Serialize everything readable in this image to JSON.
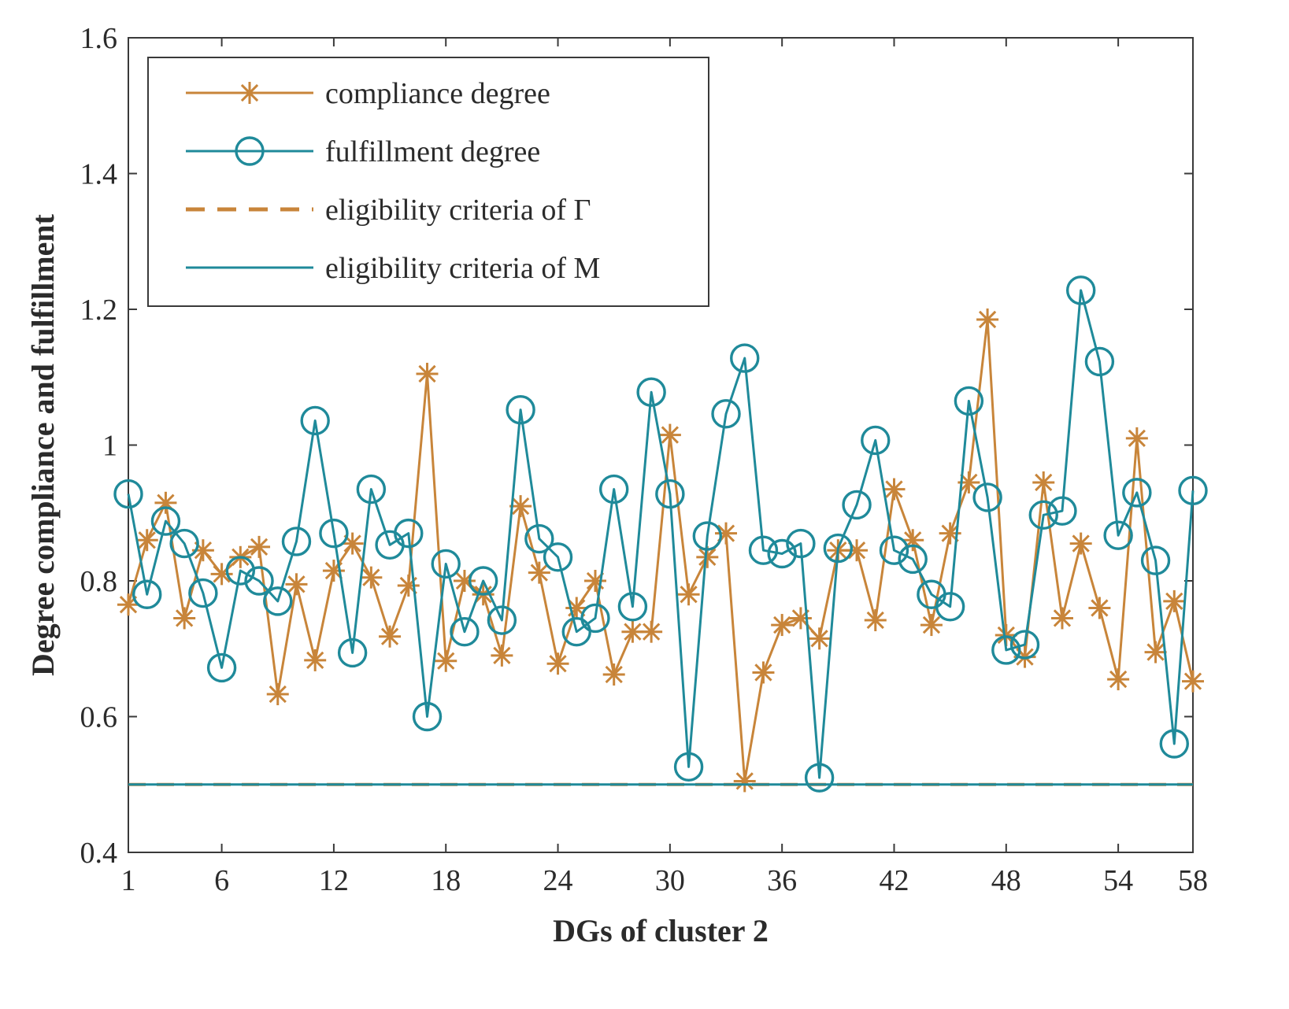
{
  "chart_data": {
    "type": "line",
    "title": "",
    "xlabel": "DGs of cluster 2",
    "ylabel": "Degree compliance and fulfillment",
    "xlim": [
      1,
      58
    ],
    "ylim": [
      0.4,
      1.6
    ],
    "x_ticks": [
      1,
      6,
      12,
      18,
      24,
      30,
      36,
      42,
      48,
      54,
      58
    ],
    "x_tick_labels": [
      "1",
      "6",
      "12",
      "18",
      "24",
      "30",
      "36",
      "42",
      "48",
      "54",
      "58"
    ],
    "y_ticks": [
      0.4,
      0.6,
      0.8,
      1.0,
      1.2,
      1.4,
      1.6
    ],
    "y_tick_labels": [
      "0.4",
      "0.6",
      "0.8",
      "1",
      "1.2",
      "1.4",
      "1.6"
    ],
    "grid": false,
    "legend_position": "top-left",
    "series": [
      {
        "name": "compliance degree",
        "color": "#c8853a",
        "marker": "asterisk",
        "line": "solid",
        "x": [
          1,
          2,
          3,
          4,
          5,
          6,
          7,
          8,
          9,
          10,
          11,
          12,
          13,
          14,
          15,
          16,
          17,
          18,
          19,
          20,
          21,
          22,
          23,
          24,
          25,
          26,
          27,
          28,
          29,
          30,
          31,
          32,
          33,
          34,
          35,
          36,
          37,
          38,
          39,
          40,
          41,
          42,
          43,
          44,
          45,
          46,
          47,
          48,
          49,
          50,
          51,
          52,
          53,
          54,
          55,
          56,
          57,
          58
        ],
        "values": [
          0.765,
          0.86,
          0.915,
          0.745,
          0.845,
          0.81,
          0.835,
          0.85,
          0.633,
          0.795,
          0.683,
          0.815,
          0.855,
          0.805,
          0.718,
          0.793,
          1.105,
          0.682,
          0.8,
          0.78,
          0.69,
          0.91,
          0.812,
          0.678,
          0.76,
          0.8,
          0.662,
          0.725,
          0.725,
          1.015,
          0.78,
          0.835,
          0.87,
          0.505,
          0.665,
          0.735,
          0.745,
          0.715,
          0.845,
          0.845,
          0.742,
          0.935,
          0.86,
          0.735,
          0.87,
          0.945,
          1.185,
          0.72,
          0.688,
          0.945,
          0.745,
          0.855,
          0.76,
          0.655,
          1.01,
          0.695,
          0.77,
          0.652
        ]
      },
      {
        "name": "fulfillment degree",
        "color": "#1f8a9a",
        "marker": "circle",
        "line": "solid",
        "x": [
          1,
          2,
          3,
          4,
          5,
          6,
          7,
          8,
          9,
          10,
          11,
          12,
          13,
          14,
          15,
          16,
          17,
          18,
          19,
          20,
          21,
          22,
          23,
          24,
          25,
          26,
          27,
          28,
          29,
          30,
          31,
          32,
          33,
          34,
          35,
          36,
          37,
          38,
          39,
          40,
          41,
          42,
          43,
          44,
          45,
          46,
          47,
          48,
          49,
          50,
          51,
          52,
          53,
          54,
          55,
          56,
          57,
          58
        ],
        "values": [
          0.928,
          0.78,
          0.888,
          0.855,
          0.782,
          0.672,
          0.815,
          0.8,
          0.77,
          0.858,
          1.036,
          0.87,
          0.694,
          0.935,
          0.853,
          0.87,
          0.6,
          0.825,
          0.725,
          0.8,
          0.742,
          1.052,
          0.862,
          0.835,
          0.725,
          0.745,
          0.935,
          0.762,
          1.078,
          0.928,
          0.526,
          0.866,
          1.046,
          1.128,
          0.845,
          0.84,
          0.855,
          0.51,
          0.848,
          0.912,
          1.007,
          0.845,
          0.832,
          0.78,
          0.762,
          1.065,
          0.923,
          0.698,
          0.706,
          0.897,
          0.903,
          1.228,
          1.123,
          0.867,
          0.93,
          0.83,
          0.56,
          0.933
        ]
      },
      {
        "name": "eligibility criteria of Γ",
        "color": "#c8853a",
        "line": "dashed",
        "x": [
          1,
          58
        ],
        "values": [
          0.5,
          0.5
        ]
      },
      {
        "name": "eligibility criteria of M",
        "color": "#1f8a9a",
        "line": "solid",
        "x": [
          1,
          58
        ],
        "values": [
          0.5,
          0.5
        ]
      }
    ]
  }
}
